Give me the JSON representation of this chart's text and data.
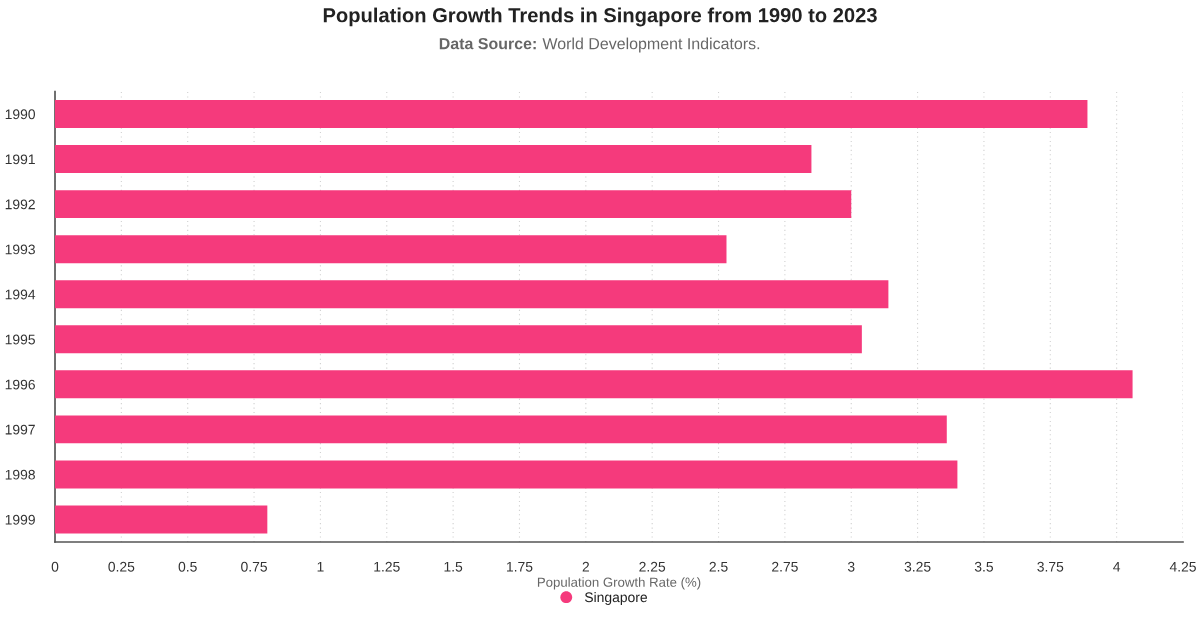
{
  "chart_data": {
    "type": "bar",
    "orientation": "horizontal",
    "title": "Population Growth Trends in Singapore from 1990 to 2023",
    "subtitle": "Data Source: World Development Indicators.",
    "xlabel": "Population Growth Rate (%)",
    "categories": [
      "1990",
      "1991",
      "1992",
      "1993",
      "1994",
      "1995",
      "1996",
      "1997",
      "1998",
      "1999"
    ],
    "series": [
      {
        "name": "Singapore",
        "color": "#f53a7c",
        "values": [
          3.89,
          2.85,
          3.0,
          2.53,
          3.14,
          3.04,
          4.06,
          3.36,
          3.4,
          0.8
        ]
      }
    ],
    "xlim": [
      0,
      4.25
    ],
    "xticks": [
      0,
      0.25,
      0.5,
      0.75,
      1,
      1.25,
      1.5,
      1.75,
      2,
      2.25,
      2.5,
      2.75,
      3,
      3.25,
      3.5,
      3.75,
      4,
      4.25
    ],
    "grid": "x",
    "legend": "bottom"
  }
}
